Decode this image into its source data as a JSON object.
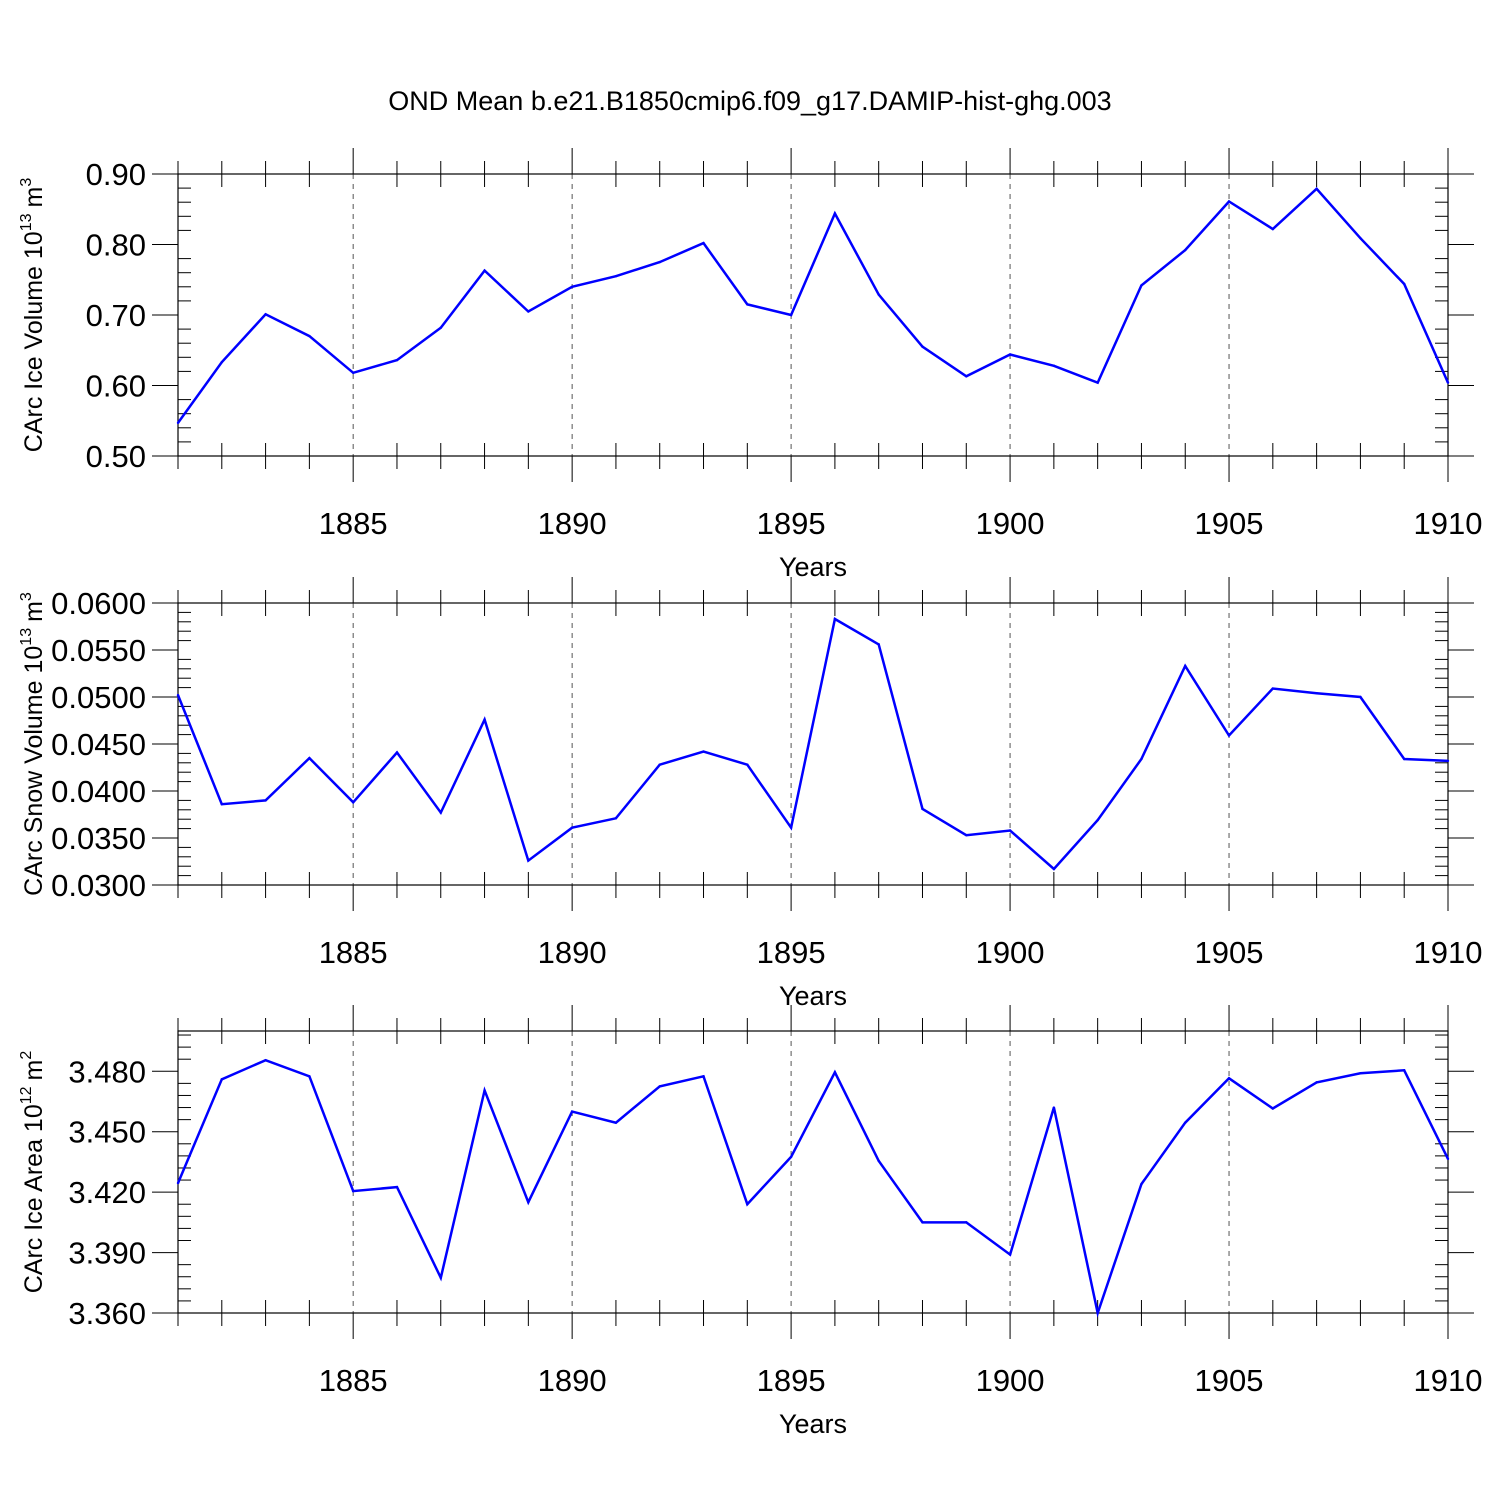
{
  "title": "OND Mean b.e21.B1850cmip6.f09_g17.DAMIP-hist-ghg.003",
  "colors": {
    "line": "#0000ff",
    "axis": "#000000",
    "grid": "#555555"
  },
  "chart_data": [
    {
      "type": "line",
      "title": "",
      "xlabel": "Years",
      "ylabel": "CArc Ice Volume 10",
      "ylabel_sup": "13",
      "ylabel_unit": "m",
      "ylabel_unit_sup": "3",
      "xlim": [
        1881,
        1910
      ],
      "ylim": [
        0.5,
        0.9
      ],
      "x_ticks": [
        "1885",
        "1890",
        "1895",
        "1900",
        "1905",
        "1910"
      ],
      "y_ticks": [
        "0.50",
        "0.60",
        "0.70",
        "0.80",
        "0.90"
      ],
      "grid": "vertical dashed at major x ticks",
      "x": [
        1881,
        1882,
        1883,
        1884,
        1885,
        1886,
        1887,
        1888,
        1889,
        1890,
        1891,
        1892,
        1893,
        1894,
        1895,
        1896,
        1897,
        1898,
        1899,
        1900,
        1901,
        1902,
        1903,
        1904,
        1905,
        1906,
        1907,
        1908,
        1909,
        1910
      ],
      "series": [
        {
          "values": [
            0.547,
            0.633,
            0.701,
            0.67,
            0.618,
            0.636,
            0.682,
            0.763,
            0.705,
            0.74,
            0.755,
            0.775,
            0.802,
            0.715,
            0.7,
            0.844,
            0.729,
            0.655,
            0.613,
            0.644,
            0.628,
            0.604,
            0.742,
            0.792,
            0.861,
            0.822,
            0.879,
            0.809,
            0.744,
            0.604
          ]
        }
      ]
    },
    {
      "type": "line",
      "title": "",
      "xlabel": "Years",
      "ylabel": "CArc Snow Volume 10",
      "ylabel_sup": "13",
      "ylabel_unit": "m",
      "ylabel_unit_sup": "3",
      "xlim": [
        1881,
        1910
      ],
      "ylim": [
        0.03,
        0.06
      ],
      "x_ticks": [
        "1885",
        "1890",
        "1895",
        "1900",
        "1905",
        "1910"
      ],
      "y_ticks": [
        "0.0300",
        "0.0350",
        "0.0400",
        "0.0450",
        "0.0500",
        "0.0550",
        "0.0600"
      ],
      "grid": "vertical dashed at major x ticks",
      "x": [
        1881,
        1882,
        1883,
        1884,
        1885,
        1886,
        1887,
        1888,
        1889,
        1890,
        1891,
        1892,
        1893,
        1894,
        1895,
        1896,
        1897,
        1898,
        1899,
        1900,
        1901,
        1902,
        1903,
        1904,
        1905,
        1906,
        1907,
        1908,
        1909,
        1910
      ],
      "series": [
        {
          "values": [
            0.0502,
            0.0386,
            0.039,
            0.0435,
            0.0388,
            0.0441,
            0.0377,
            0.0476,
            0.0326,
            0.0361,
            0.0371,
            0.0428,
            0.0442,
            0.0428,
            0.0361,
            0.0583,
            0.0556,
            0.0381,
            0.0353,
            0.0358,
            0.0317,
            0.0369,
            0.0434,
            0.0533,
            0.0459,
            0.0509,
            0.0504,
            0.05,
            0.0434,
            0.0432
          ]
        }
      ]
    },
    {
      "type": "line",
      "title": "",
      "xlabel": "Years",
      "ylabel": "CArc Ice Area 10",
      "ylabel_sup": "12",
      "ylabel_unit": "m",
      "ylabel_unit_sup": "2",
      "xlim": [
        1881,
        1910
      ],
      "ylim": [
        3.36,
        3.5
      ],
      "x_ticks": [
        "1885",
        "1890",
        "1895",
        "1900",
        "1905",
        "1910"
      ],
      "y_ticks": [
        "3.360",
        "3.390",
        "3.420",
        "3.450",
        "3.480"
      ],
      "grid": "vertical dashed at major x ticks",
      "x": [
        1881,
        1882,
        1883,
        1884,
        1885,
        1886,
        1887,
        1888,
        1889,
        1890,
        1891,
        1892,
        1893,
        1894,
        1895,
        1896,
        1897,
        1898,
        1899,
        1900,
        1901,
        1902,
        1903,
        1904,
        1905,
        1906,
        1907,
        1908,
        1909,
        1910
      ],
      "series": [
        {
          "values": [
            3.4245,
            3.476,
            3.4855,
            3.4775,
            3.4205,
            3.4225,
            3.3775,
            3.4705,
            3.415,
            3.46,
            3.4545,
            3.4725,
            3.4775,
            3.414,
            3.4375,
            3.4795,
            3.4355,
            3.405,
            3.405,
            3.389,
            3.462,
            3.36,
            3.424,
            3.4545,
            3.4765,
            3.4615,
            3.4745,
            3.479,
            3.4805,
            3.4365
          ]
        }
      ]
    }
  ]
}
